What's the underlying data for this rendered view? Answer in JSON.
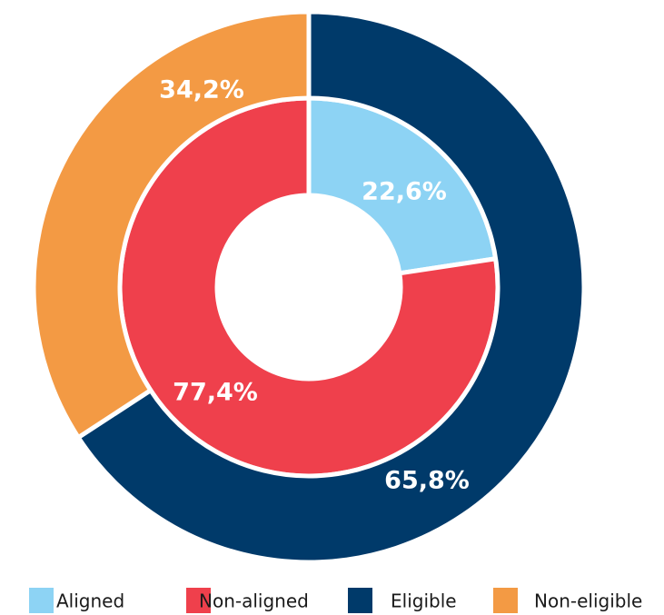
{
  "chart_data": [
    {
      "type": "pie",
      "categories": [
        "Aligned",
        "Non-aligned"
      ],
      "values": [
        22.6,
        77.4
      ],
      "value_labels": [
        "22,6%",
        "77,4%"
      ],
      "colors": [
        "#8dd3f4",
        "#ef404c"
      ]
    },
    {
      "type": "pie",
      "categories": [
        "Eligible",
        "Non-eligible"
      ],
      "values": [
        65.8,
        34.2
      ],
      "value_labels": [
        "65,8%",
        "34,2%"
      ],
      "colors": [
        "#003a6a",
        "#f39a44"
      ]
    }
  ]
}
